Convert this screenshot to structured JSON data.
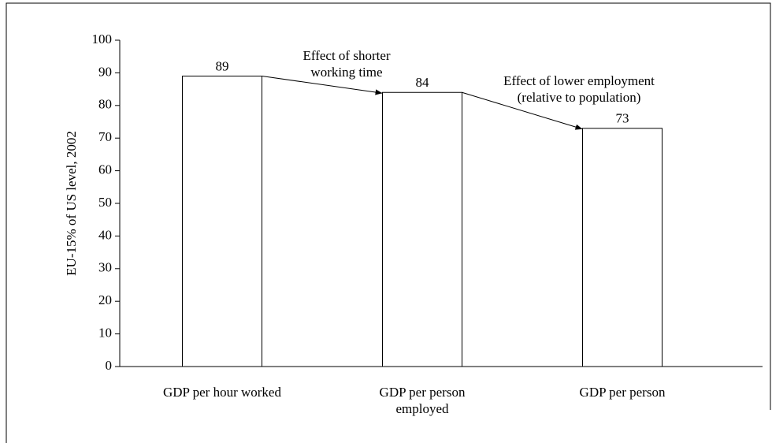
{
  "chart_data": {
    "type": "bar",
    "y_label": "EU-15% of US level, 2002",
    "categories": [
      "GDP per hour worked",
      "GDP per person employed",
      "GDP per person"
    ],
    "values": [
      89,
      84,
      73
    ],
    "color": "#ffffff",
    "ylim": [
      0,
      100
    ],
    "yticks": [
      0,
      10,
      20,
      30,
      40,
      50,
      60,
      70,
      80,
      90,
      100
    ],
    "annotations": [
      "Effect of shorter working time",
      "Effect of lower employment (relative to population)"
    ]
  }
}
